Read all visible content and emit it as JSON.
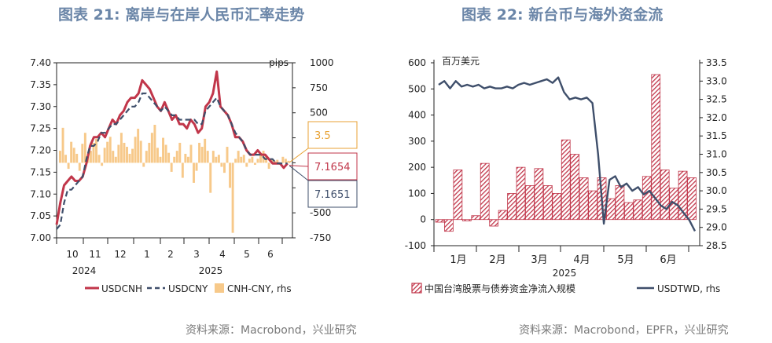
{
  "panel1": {
    "title": "图表 21: 离岸与在岸人民币汇率走势",
    "source": "资料来源：Macrobond，兴业研究",
    "rhs_unit": "pips",
    "colors": {
      "cnh": "#c1364a",
      "cny": "#3f4f6b",
      "spread": "#f7c98a"
    },
    "chart_data": {
      "type": "line",
      "left_axis": {
        "ticks": [
          7.0,
          7.05,
          7.1,
          7.15,
          7.2,
          7.25,
          7.3,
          7.35,
          7.4
        ],
        "ylim": [
          7.0,
          7.4
        ]
      },
      "right_axis": {
        "ticks": [
          -750,
          -500,
          -250,
          0,
          250,
          500,
          750,
          1000
        ],
        "ylim": [
          -750,
          1000
        ],
        "unit": "pips"
      },
      "x_month_labels": [
        "10",
        "11",
        "12",
        "1",
        "2",
        "3",
        "4",
        "5",
        "6"
      ],
      "x_year_labels": [
        "2024",
        "2025"
      ],
      "series": [
        {
          "name": "USDCNH",
          "axis": "left",
          "style": "solid",
          "color": "#c1364a",
          "points": [
            [
              0,
              7.03
            ],
            [
              3,
              7.08
            ],
            [
              6,
              7.12
            ],
            [
              9,
              7.13
            ],
            [
              12,
              7.14
            ],
            [
              15,
              7.13
            ],
            [
              18,
              7.13
            ],
            [
              21,
              7.14
            ],
            [
              24,
              7.17
            ],
            [
              27,
              7.21
            ],
            [
              30,
              7.23
            ],
            [
              33,
              7.23
            ],
            [
              36,
              7.24
            ],
            [
              39,
              7.23
            ],
            [
              42,
              7.25
            ],
            [
              45,
              7.27
            ],
            [
              48,
              7.26
            ],
            [
              51,
              7.28
            ],
            [
              54,
              7.29
            ],
            [
              57,
              7.31
            ],
            [
              60,
              7.32
            ],
            [
              63,
              7.32
            ],
            [
              66,
              7.33
            ],
            [
              69,
              7.36
            ],
            [
              72,
              7.35
            ],
            [
              75,
              7.34
            ],
            [
              78,
              7.32
            ],
            [
              81,
              7.3
            ],
            [
              84,
              7.29
            ],
            [
              87,
              7.31
            ],
            [
              90,
              7.29
            ],
            [
              93,
              7.27
            ],
            [
              96,
              7.28
            ],
            [
              99,
              7.26
            ],
            [
              102,
              7.26
            ],
            [
              105,
              7.25
            ],
            [
              108,
              7.27
            ],
            [
              111,
              7.26
            ],
            [
              114,
              7.24
            ],
            [
              117,
              7.25
            ],
            [
              120,
              7.3
            ],
            [
              123,
              7.31
            ],
            [
              126,
              7.33
            ],
            [
              129,
              7.38
            ],
            [
              132,
              7.3
            ],
            [
              135,
              7.29
            ],
            [
              138,
              7.28
            ],
            [
              141,
              7.26
            ],
            [
              144,
              7.23
            ],
            [
              147,
              7.23
            ],
            [
              150,
              7.22
            ],
            [
              153,
              7.2
            ],
            [
              156,
              7.19
            ],
            [
              159,
              7.19
            ],
            [
              162,
              7.2
            ],
            [
              165,
              7.19
            ],
            [
              168,
              7.19
            ],
            [
              171,
              7.18
            ],
            [
              174,
              7.17
            ],
            [
              177,
              7.17
            ],
            [
              180,
              7.17
            ],
            [
              183,
              7.16
            ],
            [
              186,
              7.17
            ]
          ]
        },
        {
          "name": "USDCNY",
          "axis": "left",
          "style": "dashed",
          "color": "#3f4f6b",
          "points": [
            [
              0,
              7.02
            ],
            [
              3,
              7.03
            ],
            [
              6,
              7.08
            ],
            [
              9,
              7.11
            ],
            [
              12,
              7.11
            ],
            [
              15,
              7.12
            ],
            [
              18,
              7.13
            ],
            [
              21,
              7.14
            ],
            [
              24,
              7.18
            ],
            [
              27,
              7.21
            ],
            [
              30,
              7.21
            ],
            [
              33,
              7.22
            ],
            [
              36,
              7.24
            ],
            [
              39,
              7.24
            ],
            [
              42,
              7.25
            ],
            [
              45,
              7.26
            ],
            [
              48,
              7.26
            ],
            [
              51,
              7.27
            ],
            [
              54,
              7.28
            ],
            [
              57,
              7.29
            ],
            [
              60,
              7.3
            ],
            [
              63,
              7.3
            ],
            [
              66,
              7.31
            ],
            [
              69,
              7.33
            ],
            [
              72,
              7.33
            ],
            [
              75,
              7.32
            ],
            [
              78,
              7.31
            ],
            [
              81,
              7.3
            ],
            [
              84,
              7.29
            ],
            [
              87,
              7.3
            ],
            [
              90,
              7.29
            ],
            [
              93,
              7.28
            ],
            [
              96,
              7.28
            ],
            [
              99,
              7.27
            ],
            [
              102,
              7.27
            ],
            [
              105,
              7.27
            ],
            [
              108,
              7.27
            ],
            [
              111,
              7.27
            ],
            [
              114,
              7.26
            ],
            [
              117,
              7.26
            ],
            [
              120,
              7.29
            ],
            [
              123,
              7.3
            ],
            [
              126,
              7.31
            ],
            [
              129,
              7.32
            ],
            [
              132,
              7.3
            ],
            [
              135,
              7.29
            ],
            [
              138,
              7.28
            ],
            [
              141,
              7.26
            ],
            [
              144,
              7.24
            ],
            [
              147,
              7.23
            ],
            [
              150,
              7.22
            ],
            [
              153,
              7.2
            ],
            [
              156,
              7.19
            ],
            [
              159,
              7.19
            ],
            [
              162,
              7.19
            ],
            [
              165,
              7.19
            ],
            [
              168,
              7.18
            ],
            [
              171,
              7.18
            ],
            [
              174,
              7.18
            ],
            [
              177,
              7.17
            ],
            [
              180,
              7.17
            ],
            [
              183,
              7.17
            ],
            [
              186,
              7.17
            ]
          ]
        },
        {
          "name": "CNH-CNY, rhs",
          "axis": "right",
          "type": "bar",
          "color": "#f7c98a",
          "values": [
            120,
            350,
            80,
            -60,
            210,
            150,
            90,
            -80,
            190,
            300,
            60,
            120,
            200,
            240,
            80,
            -30,
            150,
            210,
            260,
            120,
            60,
            180,
            300,
            200,
            160,
            90,
            140,
            260,
            340,
            220,
            -40,
            120,
            200,
            300,
            380,
            150,
            60,
            250,
            180,
            100,
            -90,
            60,
            120,
            200,
            -150,
            90,
            60,
            180,
            -200,
            -80,
            200,
            160,
            240,
            120,
            -300,
            120,
            60,
            80,
            -40,
            -100,
            160,
            -250,
            -700,
            40,
            120,
            60,
            80,
            -40,
            40,
            60,
            -20,
            40,
            80,
            120,
            60,
            -60,
            40,
            20,
            30,
            -20,
            60,
            40,
            20
          ]
        }
      ],
      "annotations": [
        "3.5",
        "7.1654",
        "7.1651"
      ]
    },
    "legend": [
      {
        "label": "USDCNH",
        "style": "solid"
      },
      {
        "label": "USDCNY",
        "style": "dashed"
      },
      {
        "label": "CNH-CNY, rhs",
        "style": "box"
      }
    ]
  },
  "panel2": {
    "title": "图表 22: 新台币与海外资金流",
    "source": "资料来源：Macrobond，EPFR，兴业研究",
    "lhs_unit": "百万美元",
    "colors": {
      "flow": "#c1364a",
      "twd": "#3f4f6b"
    },
    "chart_data": {
      "type": "bar",
      "left_axis": {
        "ticks": [
          -100,
          0,
          100,
          200,
          300,
          400,
          500,
          600
        ],
        "ylim": [
          -100,
          600
        ]
      },
      "right_axis": {
        "ticks": [
          28.5,
          29.0,
          29.5,
          30.0,
          30.5,
          31.0,
          31.5,
          32.0,
          32.5,
          33.0,
          33.5
        ],
        "ylim": [
          28.5,
          33.5
        ]
      },
      "x_month_labels": [
        "1月",
        "2月",
        "3月",
        "4月",
        "5月",
        "6月"
      ],
      "x_year_label": "2025",
      "series": [
        {
          "name": "中国台湾股票与债券资金净流入规模",
          "axis": "left",
          "type": "bar",
          "values": [
            -10,
            -45,
            190,
            -5,
            15,
            215,
            -25,
            35,
            100,
            200,
            130,
            195,
            130,
            100,
            305,
            250,
            160,
            110,
            160,
            80,
            130,
            65,
            75,
            165,
            555,
            190,
            120,
            185,
            160
          ]
        },
        {
          "name": "USDTWD, rhs",
          "axis": "right",
          "type": "line",
          "points": [
            [
              0,
              32.9
            ],
            [
              1,
              33.0
            ],
            [
              2,
              32.8
            ],
            [
              3,
              33.0
            ],
            [
              4,
              32.85
            ],
            [
              5,
              32.9
            ],
            [
              6,
              32.85
            ],
            [
              7,
              32.9
            ],
            [
              8,
              32.8
            ],
            [
              9,
              32.85
            ],
            [
              10,
              32.8
            ],
            [
              11,
              32.8
            ],
            [
              12,
              32.85
            ],
            [
              13,
              32.8
            ],
            [
              14,
              32.9
            ],
            [
              15,
              32.95
            ],
            [
              16,
              32.9
            ],
            [
              17,
              32.95
            ],
            [
              18,
              33.0
            ],
            [
              19,
              33.05
            ],
            [
              20,
              32.95
            ],
            [
              21,
              33.1
            ],
            [
              22,
              32.7
            ],
            [
              23,
              32.5
            ],
            [
              24,
              32.55
            ],
            [
              25,
              32.5
            ],
            [
              26,
              32.55
            ],
            [
              27,
              32.4
            ],
            [
              28,
              31.0
            ],
            [
              29,
              29.1
            ],
            [
              30,
              30.3
            ],
            [
              31,
              30.4
            ],
            [
              32,
              30.1
            ],
            [
              33,
              30.2
            ],
            [
              34,
              30.0
            ],
            [
              35,
              30.1
            ],
            [
              36,
              29.9
            ],
            [
              37,
              30.0
            ],
            [
              38,
              29.8
            ],
            [
              39,
              29.6
            ],
            [
              40,
              29.5
            ],
            [
              41,
              29.7
            ],
            [
              42,
              29.6
            ],
            [
              43,
              29.4
            ],
            [
              44,
              29.2
            ],
            [
              45,
              28.9
            ]
          ]
        }
      ]
    },
    "legend": [
      {
        "label": "中国台湾股票与债券资金净流入规模",
        "style": "box"
      },
      {
        "label": "USDTWD, rhs",
        "style": "solid"
      }
    ]
  }
}
